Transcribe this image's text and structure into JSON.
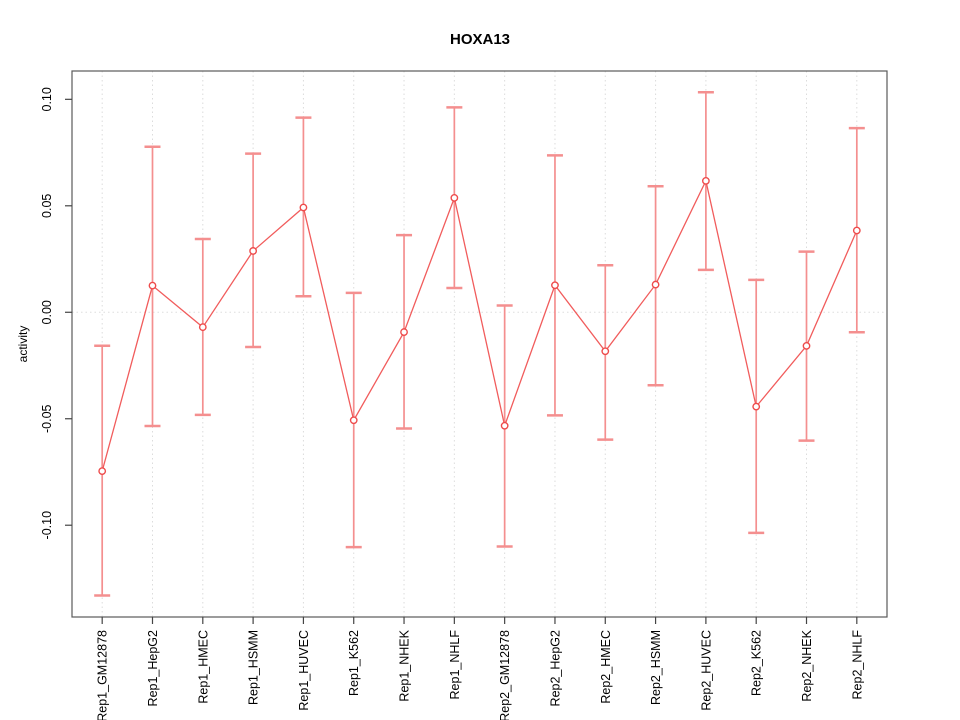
{
  "window": {
    "background": "#ffffff"
  },
  "chart_data": {
    "type": "scatter",
    "title": "HOXA13",
    "xlabel": "",
    "ylabel": "activity",
    "legend": "none",
    "grid": "vertical dotted gridline at each category; horizontal dotted line at y=0",
    "categories": [
      "Rep1_GM12878",
      "Rep1_HepG2",
      "Rep1_HMEC",
      "Rep1_HSMM",
      "Rep1_HUVEC",
      "Rep1_K562",
      "Rep1_NHEK",
      "Rep1_NHLF",
      "Rep2_GM12878",
      "Rep2_HepG2",
      "Rep2_HMEC",
      "Rep2_HSMM",
      "Rep2_HUVEC",
      "Rep2_K562",
      "Rep2_NHEK",
      "Rep2_NHLF"
    ],
    "series": [
      {
        "name": "activity",
        "marker": "open-circle",
        "connected": true,
        "values": [
          -0.0746,
          0.0125,
          -0.007,
          0.0288,
          0.0492,
          -0.0507,
          -0.0093,
          0.0537,
          -0.0533,
          0.0127,
          -0.0183,
          0.013,
          0.0617,
          -0.0443,
          -0.0158,
          0.0384
        ],
        "error_upper": [
          -0.0157,
          0.0777,
          0.0344,
          0.0745,
          0.0914,
          0.0091,
          0.0362,
          0.0962,
          0.0032,
          0.0737,
          0.0221,
          0.0592,
          0.1033,
          0.0152,
          0.0285,
          0.0865
        ],
        "error_lower": [
          -0.133,
          -0.0534,
          -0.0482,
          -0.0163,
          0.0075,
          -0.1103,
          -0.0546,
          0.0114,
          -0.11,
          -0.0484,
          -0.0598,
          -0.0343,
          0.0199,
          -0.1036,
          -0.0603,
          -0.0094
        ]
      }
    ],
    "yticks": [
      0.1,
      0.05,
      0.0,
      -0.05,
      -0.1
    ],
    "ytick_labels": [
      "0.10",
      "0.05",
      "0.00",
      "-0.05",
      "-0.10"
    ],
    "ylim": [
      -0.1431,
      0.1133
    ],
    "colors": {
      "series_line": "#f15c5c",
      "marker_stroke": "#ee4b4b",
      "error_bar": "#f48f8f",
      "gridline": "#dcdcdc",
      "zero_line": "#dedede",
      "frame": "#5a5a5a",
      "tick": "#444444",
      "text": "#000000",
      "background": "#ffffff"
    }
  }
}
